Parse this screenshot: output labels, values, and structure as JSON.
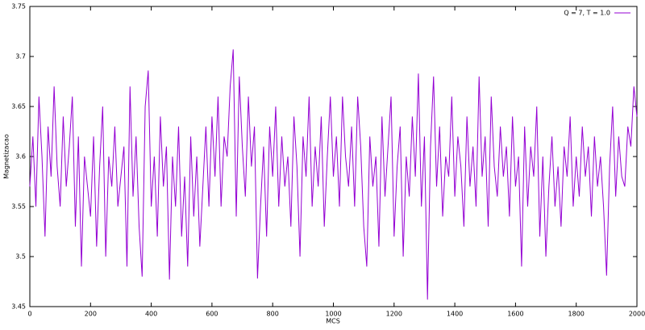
{
  "chart_data": {
    "type": "line",
    "xlabel": "MCS",
    "ylabel": "Magnetizacao",
    "x": [
      0,
      10,
      20,
      30,
      40,
      50,
      60,
      70,
      80,
      90,
      100,
      110,
      120,
      130,
      140,
      150,
      160,
      170,
      180,
      190,
      200,
      210,
      220,
      230,
      240,
      250,
      260,
      270,
      280,
      290,
      300,
      310,
      320,
      330,
      340,
      350,
      360,
      370,
      380,
      390,
      400,
      410,
      420,
      430,
      440,
      450,
      460,
      470,
      480,
      490,
      500,
      510,
      520,
      530,
      540,
      550,
      560,
      570,
      580,
      590,
      600,
      610,
      620,
      630,
      640,
      650,
      660,
      670,
      680,
      690,
      700,
      710,
      720,
      730,
      740,
      750,
      760,
      770,
      780,
      790,
      800,
      810,
      820,
      830,
      840,
      850,
      860,
      870,
      880,
      890,
      900,
      910,
      920,
      930,
      940,
      950,
      960,
      970,
      980,
      990,
      1000,
      1010,
      1020,
      1030,
      1040,
      1050,
      1060,
      1070,
      1080,
      1090,
      1100,
      1110,
      1120,
      1130,
      1140,
      1150,
      1160,
      1170,
      1180,
      1190,
      1200,
      1210,
      1220,
      1230,
      1240,
      1250,
      1260,
      1270,
      1280,
      1290,
      1300,
      1310,
      1320,
      1330,
      1340,
      1350,
      1360,
      1370,
      1380,
      1390,
      1400,
      1410,
      1420,
      1430,
      1440,
      1450,
      1460,
      1470,
      1480,
      1490,
      1500,
      1510,
      1520,
      1530,
      1540,
      1550,
      1560,
      1570,
      1580,
      1590,
      1600,
      1610,
      1620,
      1630,
      1640,
      1650,
      1660,
      1670,
      1680,
      1690,
      1700,
      1710,
      1720,
      1730,
      1740,
      1750,
      1760,
      1770,
      1780,
      1790,
      1800,
      1810,
      1820,
      1830,
      1840,
      1850,
      1860,
      1870,
      1880,
      1890,
      1900,
      1910,
      1920,
      1930,
      1940,
      1950,
      1960,
      1970,
      1980,
      1990,
      2000
    ],
    "series": [
      {
        "name": "Q = 7, T = 1.0",
        "color": "#9400d3",
        "values": [
          3.57,
          3.62,
          3.55,
          3.66,
          3.6,
          3.52,
          3.63,
          3.58,
          3.67,
          3.59,
          3.55,
          3.64,
          3.57,
          3.61,
          3.66,
          3.53,
          3.62,
          3.49,
          3.6,
          3.57,
          3.54,
          3.62,
          3.51,
          3.59,
          3.65,
          3.5,
          3.6,
          3.57,
          3.63,
          3.55,
          3.58,
          3.61,
          3.49,
          3.67,
          3.56,
          3.62,
          3.53,
          3.48,
          3.65,
          3.686,
          3.55,
          3.6,
          3.52,
          3.64,
          3.57,
          3.61,
          3.477,
          3.6,
          3.55,
          3.63,
          3.52,
          3.58,
          3.49,
          3.62,
          3.54,
          3.6,
          3.51,
          3.57,
          3.63,
          3.55,
          3.64,
          3.58,
          3.66,
          3.55,
          3.62,
          3.6,
          3.67,
          3.707,
          3.54,
          3.68,
          3.61,
          3.56,
          3.66,
          3.59,
          3.63,
          3.478,
          3.55,
          3.61,
          3.52,
          3.63,
          3.58,
          3.65,
          3.55,
          3.62,
          3.57,
          3.6,
          3.53,
          3.64,
          3.59,
          3.5,
          3.62,
          3.58,
          3.66,
          3.55,
          3.61,
          3.57,
          3.64,
          3.53,
          3.6,
          3.66,
          3.58,
          3.62,
          3.55,
          3.66,
          3.6,
          3.57,
          3.63,
          3.55,
          3.66,
          3.61,
          3.53,
          3.49,
          3.62,
          3.57,
          3.6,
          3.51,
          3.64,
          3.56,
          3.61,
          3.66,
          3.52,
          3.59,
          3.63,
          3.5,
          3.6,
          3.56,
          3.64,
          3.58,
          3.683,
          3.55,
          3.62,
          3.457,
          3.61,
          3.68,
          3.57,
          3.63,
          3.54,
          3.6,
          3.58,
          3.66,
          3.56,
          3.62,
          3.59,
          3.53,
          3.64,
          3.57,
          3.61,
          3.55,
          3.68,
          3.58,
          3.62,
          3.53,
          3.66,
          3.59,
          3.56,
          3.63,
          3.58,
          3.61,
          3.54,
          3.64,
          3.57,
          3.6,
          3.49,
          3.63,
          3.55,
          3.61,
          3.58,
          3.65,
          3.52,
          3.6,
          3.5,
          3.57,
          3.62,
          3.55,
          3.59,
          3.53,
          3.61,
          3.58,
          3.64,
          3.55,
          3.6,
          3.56,
          3.63,
          3.58,
          3.61,
          3.54,
          3.62,
          3.57,
          3.6,
          3.55,
          3.481,
          3.59,
          3.65,
          3.56,
          3.62,
          3.58,
          3.57,
          3.63,
          3.61,
          3.67,
          3.64
        ]
      }
    ],
    "xlim": [
      0,
      2000
    ],
    "xticks": [
      0,
      200,
      400,
      600,
      800,
      1000,
      1200,
      1400,
      1600,
      1800,
      2000
    ],
    "ylim": [
      3.45,
      3.75
    ],
    "yticks": [
      3.45,
      3.5,
      3.55,
      3.6,
      3.65,
      3.7,
      3.75
    ],
    "grid": false,
    "legend": "top-right"
  }
}
